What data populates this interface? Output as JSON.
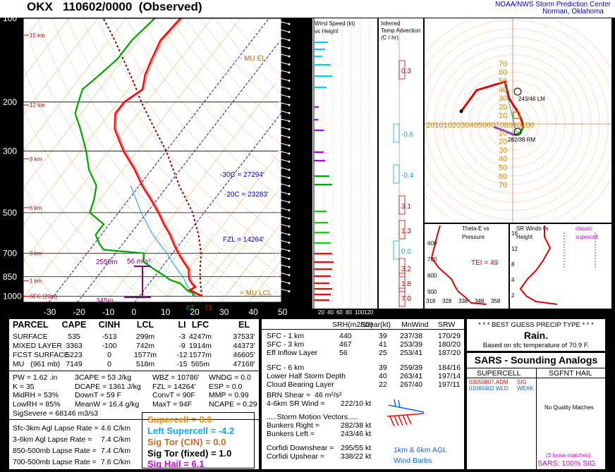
{
  "header": {
    "title": "OKX   110602/0000  (Observed)",
    "org_line1": "NOAA/NWS Storm Prediction Center",
    "org_line2": "Norman, Oklahoma"
  },
  "skewt": {
    "pressure_ticks": [
      "100",
      "200",
      "300",
      "500",
      "700",
      "850",
      "1000"
    ],
    "temp_ticks": [
      "-30",
      "-20",
      "-10",
      "0",
      "10",
      "20",
      "30",
      "40",
      "50"
    ],
    "height_labels": [
      "15 km",
      "12 km",
      "9 km",
      "6 km",
      "3 km",
      "1 km",
      "SFC (20m)"
    ],
    "annotations": {
      "mu_el": "- MU EL",
      "m30c": "-30C = 27294'",
      "m20c": "-20C = 23283'",
      "fzl": "FZL = 14264'",
      "lcl": "= MU LCL",
      "cape_depth": "2550m",
      "cape_value": "56 m²s²",
      "sfc_hgt": "345m",
      "td_sfc": "67",
      "t_sfc": "71"
    },
    "colors": {
      "temp": "#ff0000",
      "dew": "#00aa00",
      "parcel": "#8b0000",
      "wetbulb": "#00a0ff",
      "virtual": "#d07070"
    }
  },
  "wind_speed_panel": {
    "title_line1": "Wind Speed (kt)",
    "title_line2": "vs Height",
    "axis_labels": [
      "20",
      "40",
      "60",
      "80",
      "100",
      "120"
    ]
  },
  "temp_adv_panel": {
    "title_line1": "Inferred",
    "title_line2": "Temp Advection",
    "title_line3": "(C / hr)",
    "values": [
      "0.3",
      "-0.6",
      "-0.4",
      "3.1",
      "1.3",
      "0.0",
      "3.2",
      "1.8",
      "7.0"
    ]
  },
  "hodograph": {
    "rings": [
      "10",
      "20",
      "30",
      "40",
      "50",
      "60",
      "70"
    ],
    "x_ticks": [
      "20",
      "10",
      "10",
      "20",
      "30",
      "40",
      "50",
      "60",
      "70",
      "80",
      "90",
      "100"
    ],
    "lm_label": "243/46 LM",
    "rm_label": "282/38 RM"
  },
  "theta_e": {
    "title_line1": "Theta-E vs",
    "title_line2": "Pressure",
    "tei": "TEI = 49",
    "y_ticks": [
      "600",
      "700",
      "800",
      "900"
    ],
    "x_ticks": [
      "318",
      "328",
      "338",
      "348",
      "358"
    ]
  },
  "srwinds": {
    "title_line1": "SR Winds vs",
    "title_line2": "Height",
    "legend_line1": "classic",
    "legend_line2": "supercell",
    "y_ticks": [
      "16",
      "12",
      "8",
      "4",
      "2"
    ]
  },
  "parcel_table": {
    "headers": [
      "PARCEL",
      "CAPE",
      "CINH",
      "LCL",
      "LI",
      "LFC",
      "EL"
    ],
    "rows": [
      [
        "SURFACE",
        "535",
        "-513",
        "299m",
        "-3",
        "4247m",
        "37533'"
      ],
      [
        "MIXED LAYER",
        "3363",
        "-100",
        "742m",
        "-9",
        "1914m",
        "44373'"
      ],
      [
        "FCST SURFACE",
        "5223",
        "0",
        "1577m",
        "-12",
        "1577m",
        "46605'"
      ],
      [
        "MU   (961 mb)",
        "7149",
        "0",
        "518m",
        "-15",
        "565m",
        "47168'"
      ]
    ]
  },
  "indices": [
    [
      "PW = 1.62 .in",
      "3CAPE = 53 J/kg",
      "WBZ = 10786'",
      "WNDG = 0.0"
    ],
    [
      "K = 35",
      "DCAPE = 1361 J/kg",
      "FZL = 14264'",
      "ESP = 0.0"
    ],
    [
      "MidRH = 53%",
      "DownT = 59 F",
      "ConvT = 90F",
      "MMP = 0.99"
    ],
    [
      "LowRH = 85%",
      "MeanW = 16.4 g/kg",
      "MaxT = 94F",
      "NCAPE = 0.29"
    ]
  ],
  "sig_severe": "SigSevere = 68146 m3/s3",
  "lapse_rates": [
    [
      "Sfc-3km Agl Lapse Rate =",
      "4.6 C/km"
    ],
    [
      "3-6km Agl Lapse Rate =",
      "7.4 C/km"
    ],
    [
      "850-500mb Lapse Rate =",
      "7.4 C/km"
    ],
    [
      "700-500mb Lapse Rate =",
      "7.6 C/km"
    ]
  ],
  "composites": {
    "supercell": "Supercell = 8.0",
    "left_supercell": "Left Supercell = -4.2",
    "sig_tor_cin": "Sig Tor (CIN) = 0.0",
    "sig_tor_fixed": "Sig Tor (fixed) = 1.0",
    "sig_hail": "Sig Hail = 6.1",
    "colors": {
      "supercell": "#ff8c00",
      "left": "#00aaff",
      "cin": "#d2691e",
      "fixed": "#000000",
      "hail": "#cc00cc"
    }
  },
  "kinematics": {
    "headers": [
      "SRH(m2/s2)",
      "Shear(kt)",
      "MnWind",
      "SRW"
    ],
    "rows": [
      [
        "SFC - 1 km",
        "440",
        "39",
        "237/38",
        "170/29"
      ],
      [
        "SFC - 3 km",
        "467",
        "41",
        "253/39",
        "180/20"
      ],
      [
        "Eff Inflow Layer",
        "56",
        "25",
        "253/41",
        "187/20"
      ],
      [
        "SFC - 6 km",
        "",
        "39",
        "259/39",
        "184/16"
      ],
      [
        "Lower Half Storm Depth",
        "",
        "40",
        "263/41",
        "197/14"
      ],
      [
        "Cloud Bearing Layer",
        "",
        "22",
        "267/40",
        "197/11"
      ]
    ],
    "brn_shear": "BRN Shear =  46 m²/s²",
    "sr_wind": "4-6km SR Wind =",
    "sr_wind_val": "222/10 kt",
    "motion_title": ".....Storm Motion Vectors.....",
    "bunkers_right": "Bunkers Right =",
    "bunkers_right_val": "282/38 kt",
    "bunkers_left": "Bunkers Left =",
    "bunkers_left_val": "243/46 kt",
    "corfidi_down": "Corfidi Downshear =",
    "corfidi_down_val": "295/55 kt",
    "corfidi_up": "Corfidi Upshear =",
    "corfidi_up_val": "338/22 kt",
    "barbs_label1": "1km & 6km AGL",
    "barbs_label2": "Wind Barbs"
  },
  "precip": {
    "title": "* * * BEST GUESS PRECIP TYPE * * *",
    "value": "Rain.",
    "basis": "Based on sfc temperature of 70.9 F."
  },
  "sars": {
    "title": "SARS - Sounding Analogs",
    "col1": "SUPERCELL",
    "col2": "SGFNT HAIL",
    "matches": [
      {
        "id": "03050807.ADM",
        "tag": "SIG",
        "color": "#ff0000"
      },
      {
        "id": "01060402.WLD",
        "tag": "WEAK",
        "color": "#0066ff"
      }
    ],
    "hail_note": "No Quality Matches",
    "loose": "(3 loose matches)",
    "pct": "SARS: 100% SIG"
  }
}
